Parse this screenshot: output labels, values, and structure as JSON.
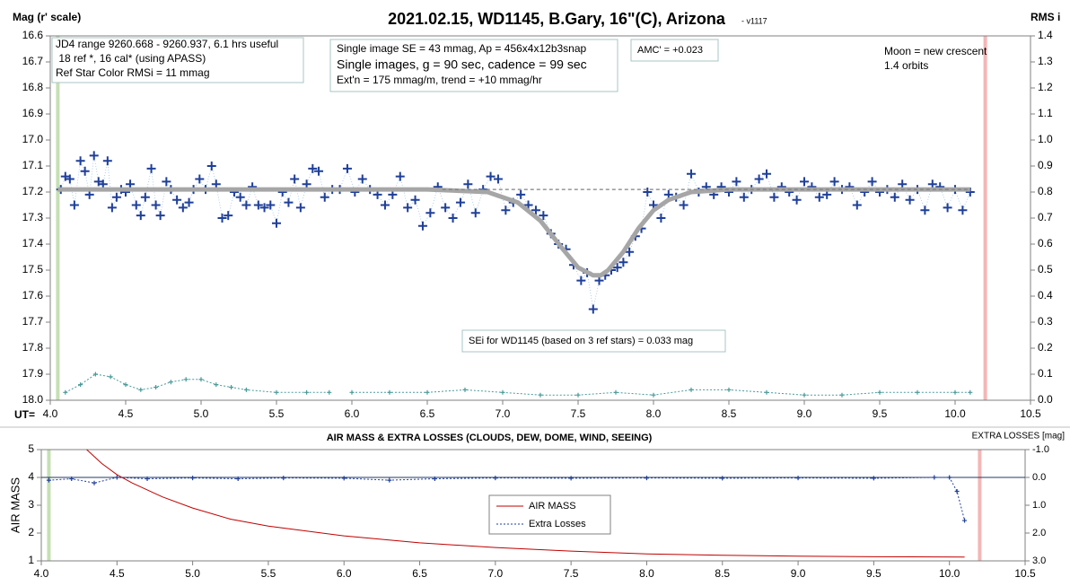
{
  "chart_data": [
    {
      "type": "scatter",
      "title": "2021.02.15, WD1145, B.Gary, 16\"(C), Arizona",
      "subtitle": "- v1117",
      "ylabel": "Mag (r' scale)",
      "y2label": "RMS i",
      "xlabel": "UT=",
      "xlim": [
        4.0,
        10.5
      ],
      "xticks": [
        {
          "value": 4,
          "label": "4.0"
        },
        4.5,
        {
          "value": 5,
          "label": "5.0"
        },
        5.5,
        {
          "value": 6,
          "label": "6.0"
        },
        6.5,
        {
          "value": 7,
          "label": "7.0"
        },
        7.5,
        {
          "value": 8,
          "label": "8.0"
        },
        8.5,
        {
          "value": 9,
          "label": "9.0"
        },
        9.5,
        {
          "value": 10,
          "label": "10.0"
        },
        10.5
      ],
      "ylim": [
        16.6,
        18.0
      ],
      "y_inverted": true,
      "yticks": [
        16.6,
        16.7,
        16.8,
        16.9,
        {
          "value": 17,
          "label": "17.0"
        },
        17.1,
        17.2,
        17.3,
        17.4,
        17.5,
        17.6,
        17.7,
        17.8,
        17.9,
        {
          "value": 18,
          "label": "18.0"
        }
      ],
      "y2lim": [
        0,
        1.4
      ],
      "y2ticks": [
        1.4,
        1.3,
        1.2,
        1.1,
        {
          "value": 1,
          "label": "1.0"
        },
        0.9,
        0.8,
        0.7,
        0.6,
        0.5,
        0.4,
        0.3,
        0.2,
        0.1,
        {
          "value": 0,
          "label": "0.0"
        }
      ],
      "vlines": [
        {
          "x": 4.05,
          "color": "#c5e0b4"
        },
        {
          "x": 10.2,
          "color": "#f4b6b6"
        }
      ],
      "annotations": [
        {
          "lines": [
            "JD4 range 9260.668 - 9260.937, 6.1 hrs useful",
            " 18 ref *, 16 cal* (using APASS)",
            "Ref Star Color RMSi = 11 mmag"
          ]
        },
        {
          "lines": [
            "Single image SE = 43 mmag, Ap = 456x4x12b3snap",
            "Single images, g = 90 sec, cadence = 99 sec",
            "Ext'n = 175 mmag/m, trend = +10 mmag/hr"
          ]
        },
        {
          "lines": [
            "AMC' = +0.023"
          ]
        },
        {
          "lines": [
            "Moon = new crescent",
            "1.4 orbits"
          ]
        },
        {
          "lines": [
            "SEi for WD1145 (based on 3 ref stars) = 0.033 mag"
          ]
        }
      ],
      "series": [
        {
          "style": "markers",
          "color": "#1f3f99",
          "x": [
            4.07,
            4.1,
            4.13,
            4.16,
            4.2,
            4.23,
            4.26,
            4.29,
            4.32,
            4.35,
            4.38,
            4.41,
            4.44,
            4.47,
            4.5,
            4.53,
            4.57,
            4.6,
            4.63,
            4.67,
            4.7,
            4.73,
            4.77,
            4.8,
            4.84,
            4.88,
            4.92,
            4.95,
            4.99,
            5.03,
            5.07,
            5.1,
            5.14,
            5.18,
            5.22,
            5.26,
            5.3,
            5.34,
            5.38,
            5.42,
            5.46,
            5.5,
            5.54,
            5.58,
            5.62,
            5.66,
            5.7,
            5.74,
            5.78,
            5.82,
            5.87,
            5.92,
            5.97,
            6.02,
            6.07,
            6.12,
            6.17,
            6.22,
            6.27,
            6.32,
            6.37,
            6.42,
            6.47,
            6.52,
            6.57,
            6.62,
            6.67,
            6.72,
            6.77,
            6.82,
            6.87,
            6.92,
            6.97,
            7.02,
            7.07,
            7.12,
            7.17,
            7.22,
            7.27,
            7.32,
            7.37,
            7.42,
            7.47,
            7.52,
            7.56,
            7.6,
            7.64,
            7.68,
            7.72,
            7.76,
            7.8,
            7.84,
            7.88,
            7.92,
            7.96,
            8.0,
            8.05,
            8.1,
            8.15,
            8.2,
            8.25,
            8.3,
            8.35,
            8.4,
            8.45,
            8.5,
            8.55,
            8.6,
            8.65,
            8.7,
            8.75,
            8.8,
            8.85,
            8.9,
            8.95,
            9.0,
            9.05,
            9.1,
            9.15,
            9.2,
            9.25,
            9.3,
            9.35,
            9.4,
            9.45,
            9.5,
            9.55,
            9.6,
            9.65,
            9.7,
            9.75,
            9.8,
            9.85,
            9.9,
            9.95,
            10.0,
            10.05,
            10.1
          ],
          "values": [
            17.19,
            17.14,
            17.15,
            17.25,
            17.08,
            17.12,
            17.21,
            17.06,
            17.16,
            17.17,
            17.08,
            17.26,
            17.22,
            17.19,
            17.2,
            17.17,
            17.25,
            17.29,
            17.22,
            17.11,
            17.25,
            17.29,
            17.16,
            17.19,
            17.23,
            17.26,
            17.24,
            17.19,
            17.15,
            17.19,
            17.1,
            17.17,
            17.3,
            17.29,
            17.2,
            17.22,
            17.25,
            17.18,
            17.25,
            17.26,
            17.25,
            17.32,
            17.2,
            17.24,
            17.15,
            17.26,
            17.17,
            17.11,
            17.12,
            17.22,
            17.19,
            17.19,
            17.11,
            17.2,
            17.15,
            17.19,
            17.21,
            17.25,
            17.21,
            17.14,
            17.26,
            17.23,
            17.33,
            17.28,
            17.18,
            17.26,
            17.3,
            17.24,
            17.17,
            17.28,
            17.19,
            17.14,
            17.15,
            17.27,
            17.24,
            17.21,
            17.25,
            17.27,
            17.29,
            17.36,
            17.4,
            17.42,
            17.48,
            17.54,
            17.51,
            17.65,
            17.54,
            17.52,
            17.5,
            17.49,
            17.47,
            17.43,
            17.37,
            17.34,
            17.2,
            17.25,
            17.3,
            17.21,
            17.22,
            17.25,
            17.13,
            17.2,
            17.18,
            17.21,
            17.18,
            17.2,
            17.16,
            17.22,
            17.19,
            17.15,
            17.13,
            17.22,
            17.18,
            17.2,
            17.23,
            17.16,
            17.18,
            17.22,
            17.21,
            17.16,
            17.19,
            17.18,
            17.25,
            17.2,
            17.16,
            17.2,
            17.19,
            17.22,
            17.17,
            17.23,
            17.19,
            17.27,
            17.17,
            17.18,
            17.26,
            17.19,
            17.27,
            17.2
          ]
        },
        {
          "style": "line",
          "color": "#a6a6a6",
          "width": 5,
          "x": [
            4.05,
            4.5,
            5,
            5.5,
            6,
            6.5,
            6.9,
            7.1,
            7.25,
            7.4,
            7.5,
            7.6,
            7.65,
            7.7,
            7.8,
            7.9,
            8.0,
            8.1,
            8.25,
            8.5,
            9,
            9.5,
            10.1
          ],
          "values": [
            17.19,
            17.19,
            17.19,
            17.19,
            17.19,
            17.19,
            17.2,
            17.24,
            17.31,
            17.42,
            17.49,
            17.52,
            17.52,
            17.5,
            17.43,
            17.34,
            17.27,
            17.23,
            17.2,
            17.19,
            17.19,
            17.19,
            17.19
          ]
        },
        {
          "style": "dashed",
          "color": "#808080",
          "width": 1.2,
          "x": [
            6.6,
            10.1
          ],
          "values": [
            17.19,
            17.19
          ]
        },
        {
          "style": "dotted-markers",
          "color": "#4a9a9a",
          "axis": "y2",
          "x": [
            4.1,
            4.2,
            4.3,
            4.4,
            4.5,
            4.6,
            4.7,
            4.8,
            4.9,
            5.0,
            5.1,
            5.2,
            5.3,
            5.5,
            5.7,
            5.85,
            5.9,
            6.0,
            6.25,
            6.5,
            6.75,
            7.0,
            7.25,
            7.5,
            7.75,
            8.0,
            8.25,
            8.5,
            8.75,
            9.0,
            9.25,
            9.5,
            9.75,
            10.0,
            10.1
          ],
          "values": [
            0.03,
            0.06,
            0.1,
            0.09,
            0.06,
            0.04,
            0.05,
            0.07,
            0.08,
            0.08,
            0.06,
            0.05,
            0.04,
            0.03,
            0.03,
            0.03,
            null,
            0.03,
            0.03,
            0.03,
            0.04,
            0.03,
            0.02,
            0.02,
            0.03,
            0.02,
            0.04,
            0.04,
            0.03,
            0.02,
            0.02,
            0.03,
            0.03,
            0.03,
            0.03
          ]
        }
      ]
    },
    {
      "type": "line",
      "title": "AIR MASS & EXTRA LOSSES (CLOUDS, DEW, DOME, WIND, SEEING)",
      "ylabel": "AIR MASS",
      "y2label": "EXTRA LOSSES [mag]",
      "xlim": [
        4.0,
        10.5
      ],
      "xticks": [
        {
          "value": 4,
          "label": "4.0"
        },
        4.5,
        {
          "value": 5,
          "label": "5.0"
        },
        5.5,
        {
          "value": 6,
          "label": "6.0"
        },
        6.5,
        {
          "value": 7,
          "label": "7.0"
        },
        7.5,
        {
          "value": 8,
          "label": "8.0"
        },
        8.5,
        {
          "value": 9,
          "label": "9.0"
        },
        9.5,
        {
          "value": 10,
          "label": "10.0"
        },
        10.5
      ],
      "ylim": [
        1,
        5
      ],
      "yticks": [
        1,
        2,
        3,
        4,
        5
      ],
      "y2lim": [
        -1,
        3
      ],
      "y2_inverted": true,
      "y2ticks": [
        {
          "value": -1,
          "label": "-1.0"
        },
        {
          "value": 0,
          "label": "0.0"
        },
        {
          "value": 1,
          "label": "1.0"
        },
        {
          "value": 2,
          "label": "2.0"
        },
        {
          "value": 3,
          "label": "3.0"
        }
      ],
      "zero_line": true,
      "legend": "lower center",
      "vlines": [
        {
          "x": 4.05,
          "color": "#c5e0b4"
        },
        {
          "x": 10.2,
          "color": "#f4b6b6"
        }
      ],
      "series": [
        {
          "name": "AIR MASS",
          "style": "line",
          "color": "#c00000",
          "width": 1,
          "x": [
            4.3,
            4.4,
            4.5,
            4.6,
            4.8,
            5.0,
            5.25,
            5.5,
            6.0,
            6.5,
            7.0,
            7.5,
            8.0,
            8.5,
            9.0,
            9.5,
            10.1
          ],
          "values": [
            5.0,
            4.5,
            4.1,
            3.8,
            3.3,
            2.9,
            2.5,
            2.25,
            1.9,
            1.65,
            1.48,
            1.35,
            1.25,
            1.2,
            1.17,
            1.15,
            1.14
          ]
        },
        {
          "name": "Extra Losses",
          "style": "dotted-markers",
          "color": "#1f3f99",
          "axis": "y2",
          "x": [
            4.05,
            4.2,
            4.35,
            4.5,
            4.7,
            5.0,
            5.3,
            5.6,
            6.0,
            6.3,
            6.6,
            7.0,
            7.5,
            8.0,
            8.5,
            9.0,
            9.5,
            9.9,
            10.0,
            10.05,
            10.1
          ],
          "values": [
            0.1,
            0.05,
            0.2,
            0.0,
            0.05,
            0.02,
            0.05,
            0.02,
            0.03,
            0.1,
            0.05,
            0.02,
            0.03,
            0.02,
            0.03,
            0.02,
            0.03,
            0.0,
            0.0,
            0.5,
            1.55
          ]
        }
      ]
    }
  ]
}
